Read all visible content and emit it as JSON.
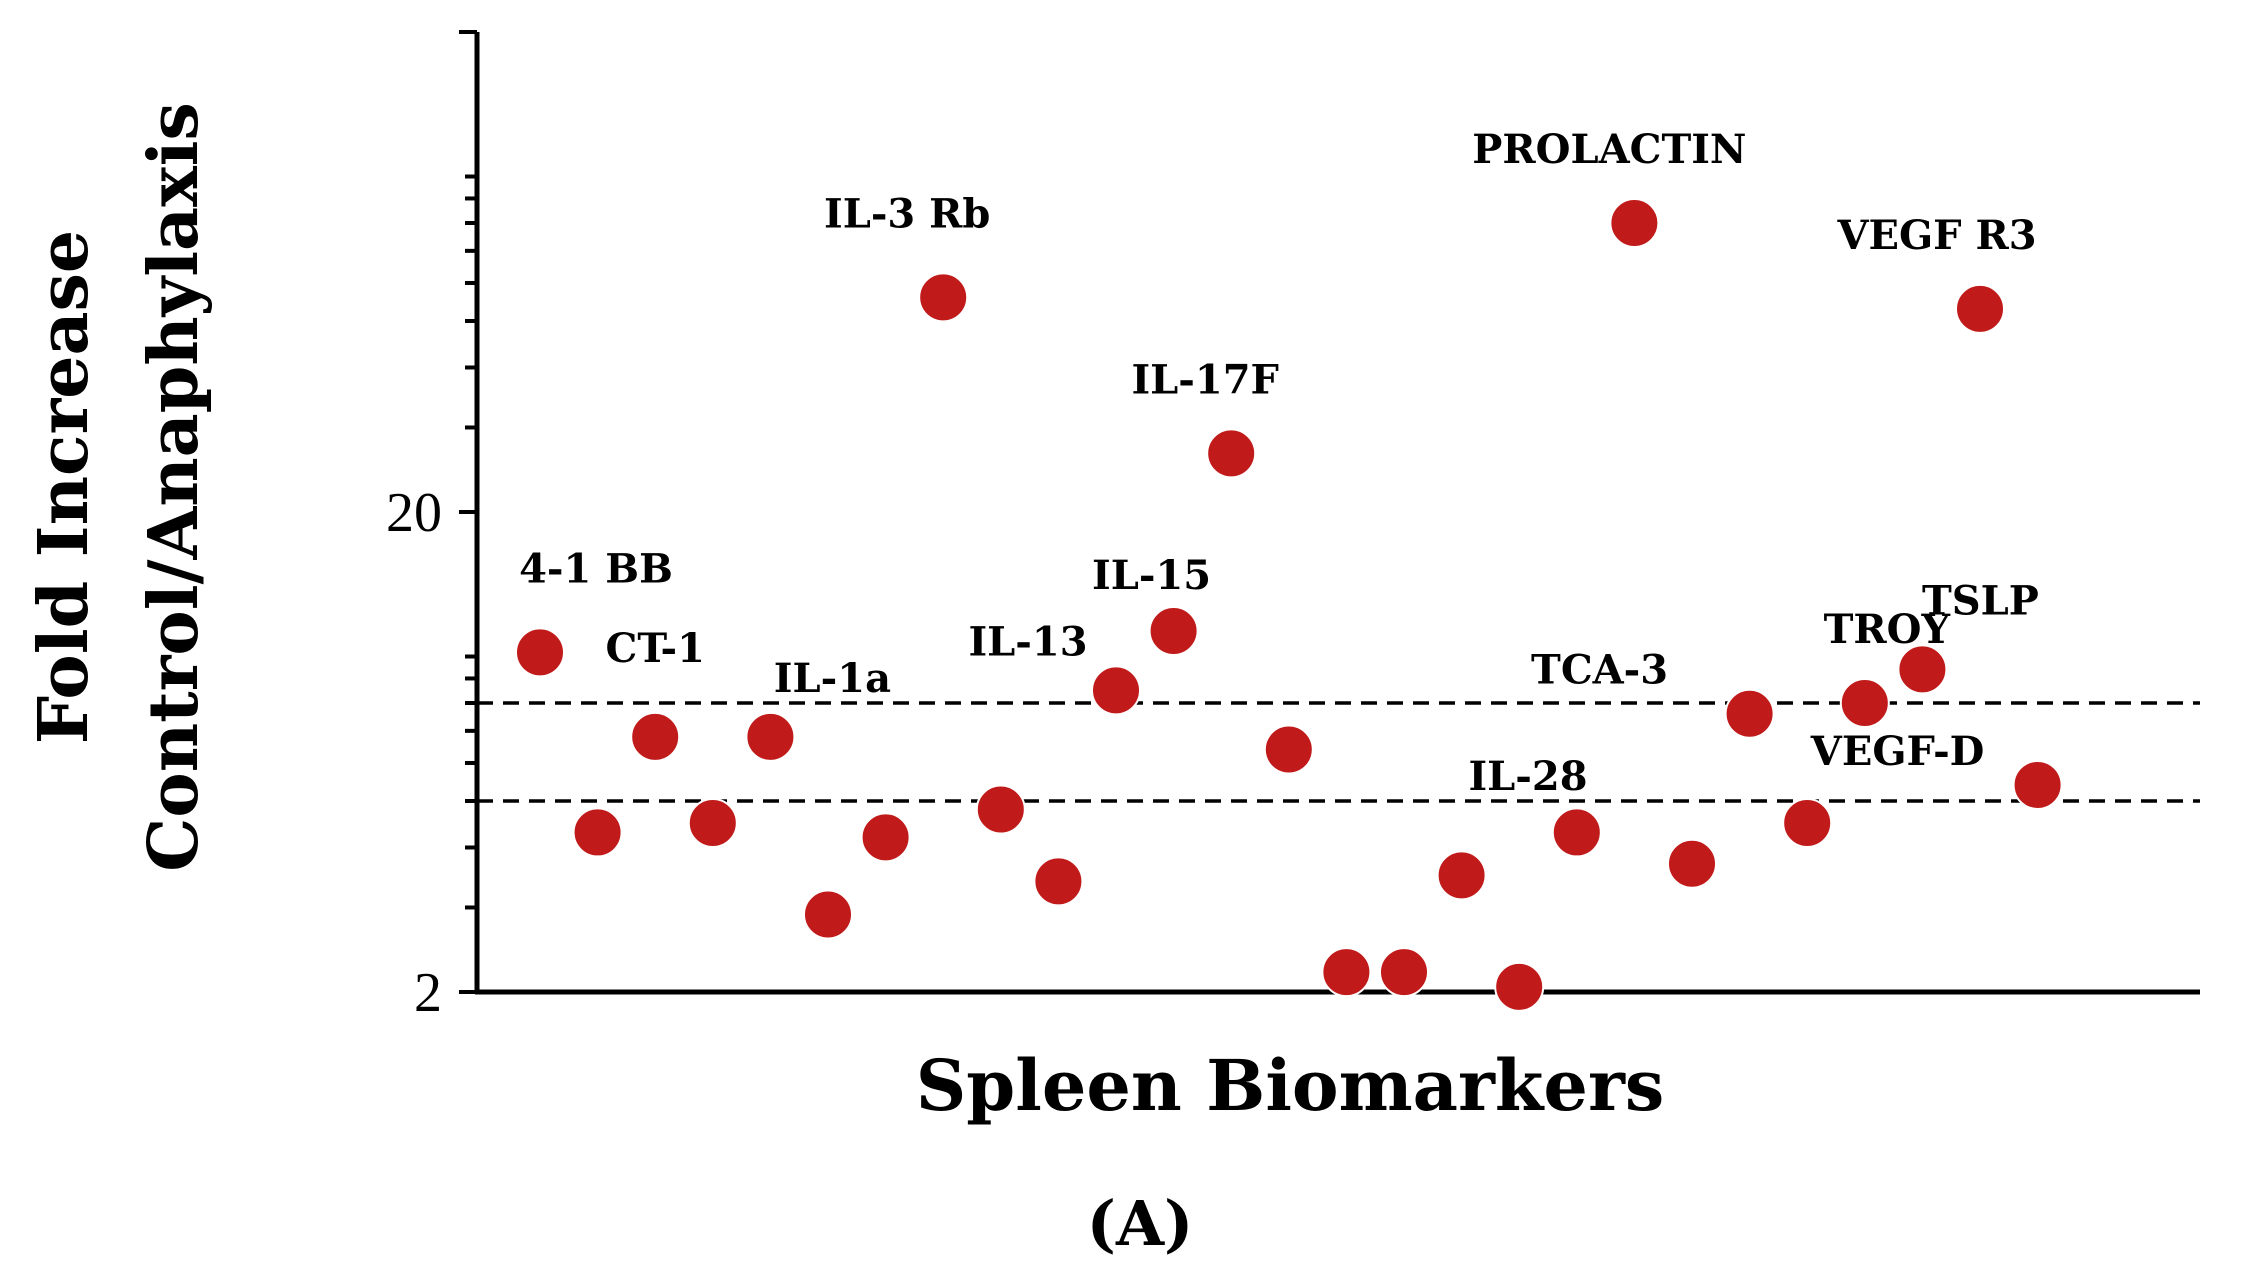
{
  "chart_data": {
    "type": "scatter",
    "title": "",
    "panel_label": "(A)",
    "xlabel": "Spleen Biomarkers",
    "ylabel_line1": "Fold Increase",
    "ylabel_line2": "Control/Anaphylaxis",
    "yscale": "log",
    "ylim": [
      2,
      200
    ],
    "y_tick_labels": [
      "20",
      "2"
    ],
    "reference_lines": [
      5,
      8
    ],
    "series": [
      {
        "name": "Spleen Biomarkers",
        "color": "#c11a1a",
        "points": [
          {
            "x": 1,
            "y": 10.2,
            "label": "4-1 BB"
          },
          {
            "x": 2,
            "y": 4.3,
            "label": ""
          },
          {
            "x": 3,
            "y": 6.8,
            "label": "CT-1"
          },
          {
            "x": 4,
            "y": 4.5,
            "label": ""
          },
          {
            "x": 5,
            "y": 6.8,
            "label": "IL-1a"
          },
          {
            "x": 6,
            "y": 2.9,
            "label": ""
          },
          {
            "x": 7,
            "y": 4.2,
            "label": ""
          },
          {
            "x": 8,
            "y": 56,
            "label": "IL-3 Rb"
          },
          {
            "x": 9,
            "y": 4.8,
            "label": ""
          },
          {
            "x": 10,
            "y": 3.4,
            "label": ""
          },
          {
            "x": 11,
            "y": 8.5,
            "label": "IL-13"
          },
          {
            "x": 12,
            "y": 11.3,
            "label": "IL-15"
          },
          {
            "x": 13,
            "y": 26.5,
            "label": "IL-17F"
          },
          {
            "x": 14,
            "y": 6.4,
            "label": ""
          },
          {
            "x": 15,
            "y": 2.2,
            "label": ""
          },
          {
            "x": 16,
            "y": 2.2,
            "label": "IL-28"
          },
          {
            "x": 17,
            "y": 3.5,
            "label": ""
          },
          {
            "x": 18,
            "y": 2.05,
            "label": ""
          },
          {
            "x": 19,
            "y": 4.3,
            "label": ""
          },
          {
            "x": 20,
            "y": 80,
            "label": "PROLACTIN"
          },
          {
            "x": 21,
            "y": 3.7,
            "label": ""
          },
          {
            "x": 22,
            "y": 7.6,
            "label": "TCA-3"
          },
          {
            "x": 23,
            "y": 4.5,
            "label": ""
          },
          {
            "x": 24,
            "y": 8.0,
            "label": "TROY"
          },
          {
            "x": 25,
            "y": 9.4,
            "label": "TSLP"
          },
          {
            "x": 26,
            "y": 53,
            "label": "VEGF R3"
          },
          {
            "x": 27,
            "y": 5.4,
            "label": "VEGF-D"
          }
        ]
      }
    ]
  }
}
